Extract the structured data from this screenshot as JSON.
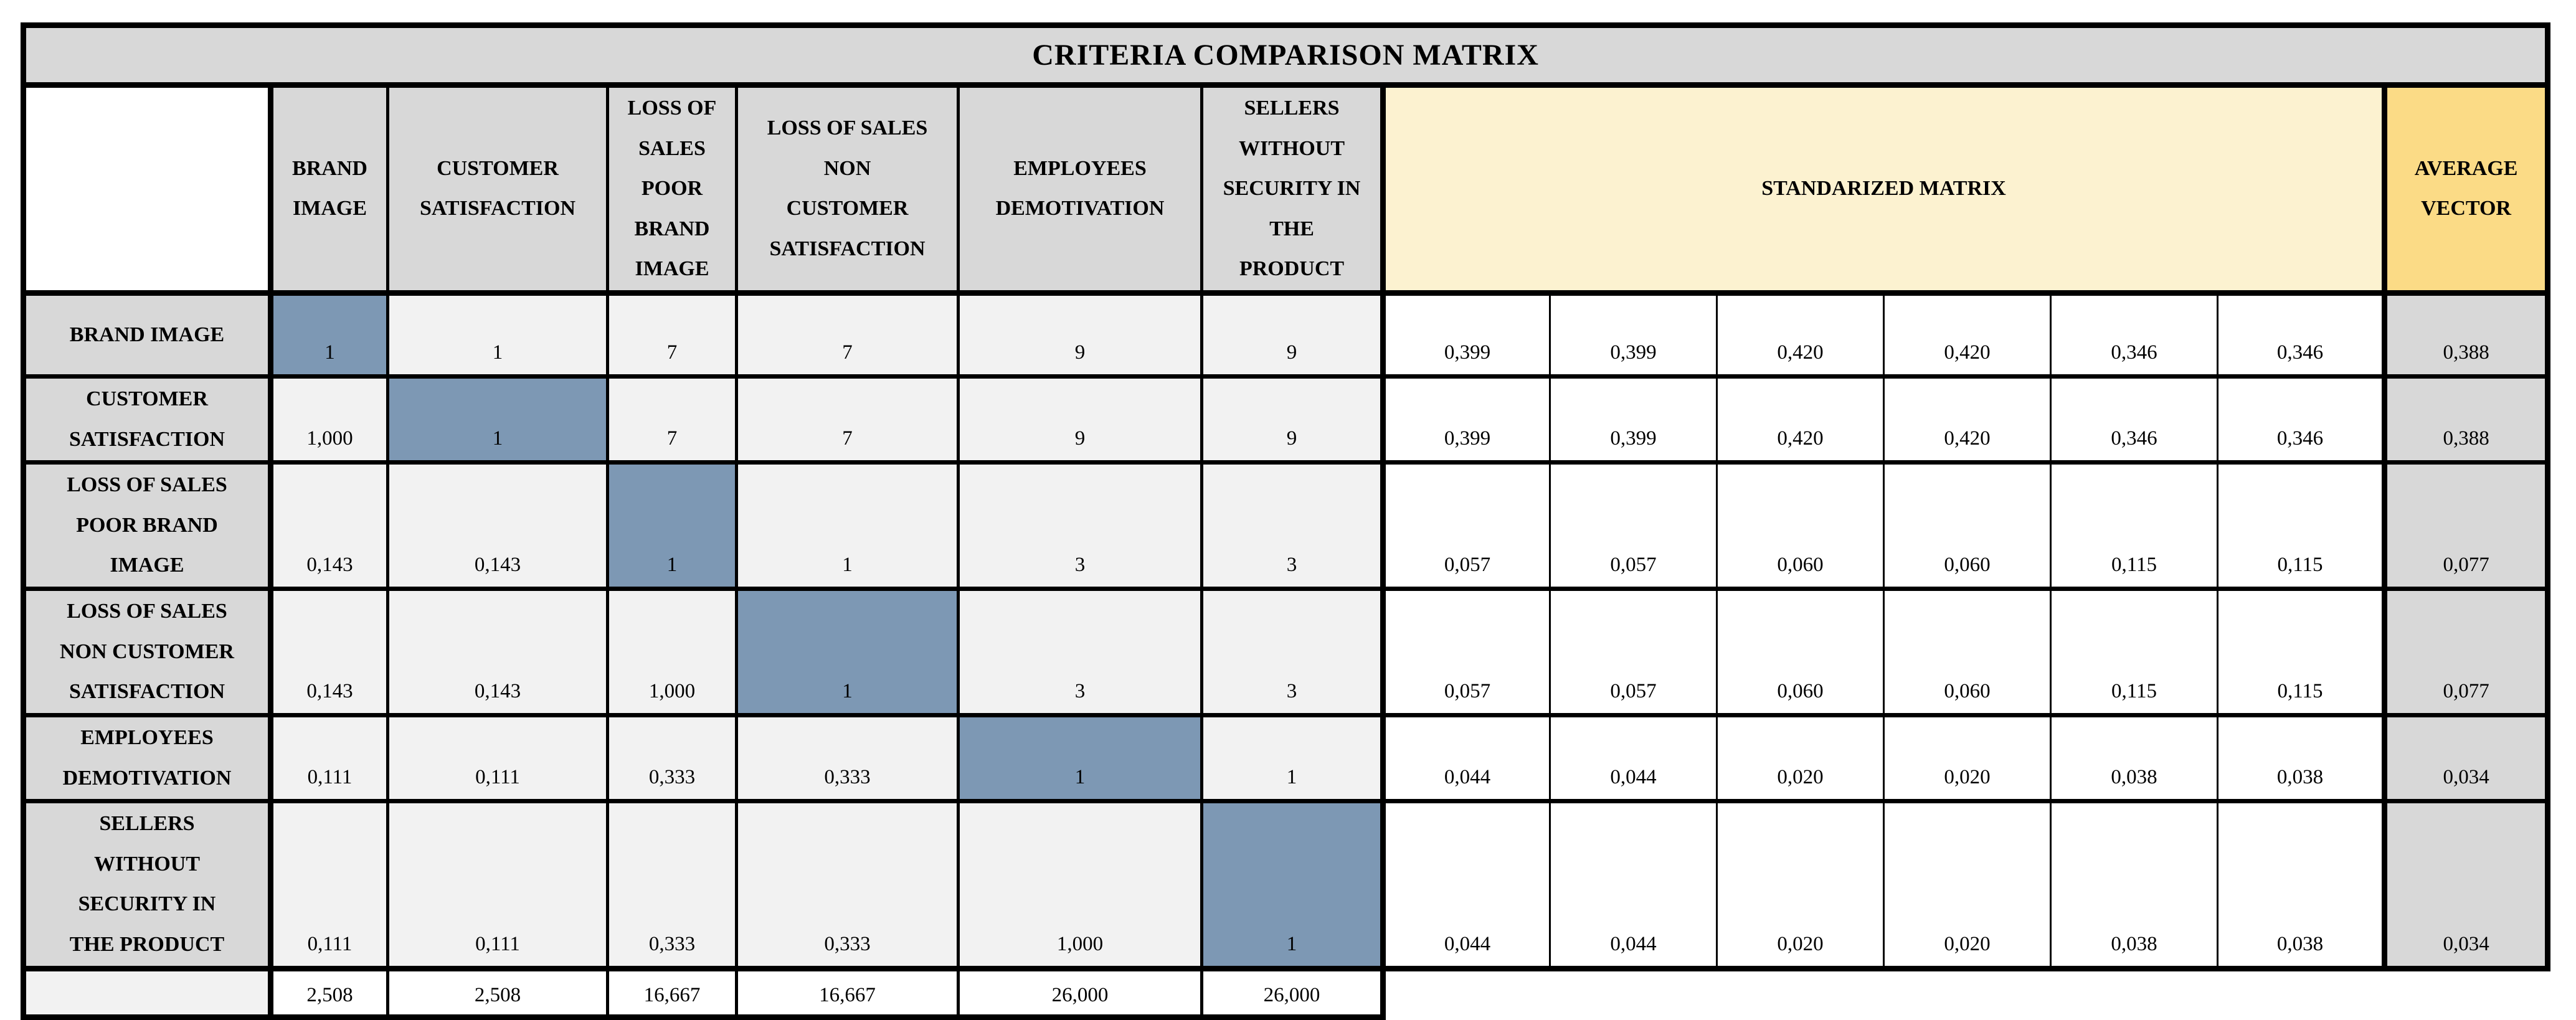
{
  "title": "CRITERIA COMPARISON MATRIX",
  "corner_label": "",
  "column_headers": [
    "BRAND\nIMAGE",
    "CUSTOMER\nSATISFACTION",
    "LOSS OF\nSALES\nPOOR\nBRAND\nIMAGE",
    "LOSS OF SALES\nNON\nCUSTOMER\nSATISFACTION",
    "EMPLOYEES\nDEMOTIVATION",
    "SELLERS\nWITHOUT\nSECURITY IN\nTHE\nPRODUCT"
  ],
  "standardized_matrix_header": "STANDARIZED MATRIX",
  "average_vector_header": "AVERAGE\nVECTOR",
  "rows": [
    {
      "label": "BRAND IMAGE",
      "comparison": [
        "1",
        "1",
        "7",
        "7",
        "9",
        "9"
      ],
      "diagonal_index": 0,
      "standardized": [
        "0,399",
        "0,399",
        "0,420",
        "0,420",
        "0,346",
        "0,346"
      ],
      "average": "0,388"
    },
    {
      "label": "CUSTOMER\nSATISFACTION",
      "comparison": [
        "1,000",
        "1",
        "7",
        "7",
        "9",
        "9"
      ],
      "diagonal_index": 1,
      "standardized": [
        "0,399",
        "0,399",
        "0,420",
        "0,420",
        "0,346",
        "0,346"
      ],
      "average": "0,388"
    },
    {
      "label": "LOSS OF SALES\nPOOR BRAND\nIMAGE",
      "comparison": [
        "0,143",
        "0,143",
        "1",
        "1",
        "3",
        "3"
      ],
      "diagonal_index": 2,
      "standardized": [
        "0,057",
        "0,057",
        "0,060",
        "0,060",
        "0,115",
        "0,115"
      ],
      "average": "0,077"
    },
    {
      "label": "LOSS OF SALES\nNON CUSTOMER\nSATISFACTION",
      "comparison": [
        "0,143",
        "0,143",
        "1,000",
        "1",
        "3",
        "3"
      ],
      "diagonal_index": 3,
      "standardized": [
        "0,057",
        "0,057",
        "0,060",
        "0,060",
        "0,115",
        "0,115"
      ],
      "average": "0,077"
    },
    {
      "label": "EMPLOYEES\nDEMOTIVATION",
      "comparison": [
        "0,111",
        "0,111",
        "0,333",
        "0,333",
        "1",
        "1"
      ],
      "diagonal_index": 4,
      "standardized": [
        "0,044",
        "0,044",
        "0,020",
        "0,020",
        "0,038",
        "0,038"
      ],
      "average": "0,034"
    },
    {
      "label": "SELLERS\nWITHOUT\nSECURITY IN\nTHE PRODUCT",
      "comparison": [
        "0,111",
        "0,111",
        "0,333",
        "0,333",
        "1,000",
        "1"
      ],
      "diagonal_index": 5,
      "standardized": [
        "0,044",
        "0,044",
        "0,020",
        "0,020",
        "0,038",
        "0,038"
      ],
      "average": "0,034"
    }
  ],
  "sum_row": {
    "label": "",
    "values": [
      "2,508",
      "2,508",
      "16,667",
      "16,667",
      "26,000",
      "26,000"
    ]
  },
  "colors": {
    "header_fill": "#D8D8D8",
    "comparison_fill": "#F2F2F2",
    "diagonal_fill": "#7D98B4",
    "standardized_header_fill": "#FCF2D0",
    "average_header_fill": "#FBDB86",
    "average_fill": "#D8D8D8",
    "sum_label_fill": "#F2F2F2",
    "border": "#000000"
  }
}
